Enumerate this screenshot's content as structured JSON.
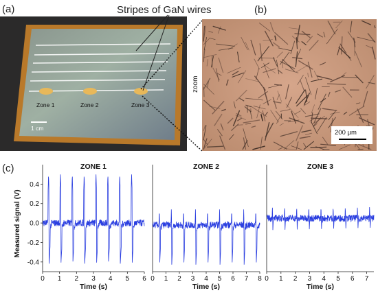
{
  "panels": {
    "a": {
      "label": "(a)",
      "annotation": "Stripes of GaN wires",
      "zones": [
        "Zone 1",
        "Zone 2",
        "Zone 3"
      ],
      "scalebar": "1 cm"
    },
    "b": {
      "label": "(b)",
      "zoom_label": "zoom",
      "scalebar": "200 µm"
    },
    "c": {
      "label": "(c)"
    }
  },
  "colors": {
    "trace": "#2b3fe0",
    "marker": "#e8b85a",
    "frame": "#b9792a",
    "micrograph": "#c28f76"
  },
  "chart_data": [
    {
      "type": "line",
      "title": "ZONE 1",
      "xlabel": "Time (s)",
      "ylabel": "Measured signal (V)",
      "xlim": [
        0,
        6
      ],
      "ylim": [
        -0.5,
        0.6
      ],
      "xticks": [
        0,
        1,
        2,
        3,
        4,
        5,
        6
      ],
      "yticks": [
        -0.4,
        -0.2,
        0.0,
        0.2,
        0.4
      ],
      "series": [
        {
          "baseline": 0.0,
          "peak_times": [
            0.35,
            1.05,
            1.75,
            2.45,
            3.15,
            3.85,
            4.55,
            5.25
          ],
          "peak_max": 0.5,
          "peak_min": -0.42
        }
      ]
    },
    {
      "type": "line",
      "title": "ZONE 2",
      "xlabel": "Time (s)",
      "xlim": [
        0,
        8
      ],
      "ylim": [
        -0.5,
        0.6
      ],
      "xticks": [
        0,
        1,
        2,
        3,
        4,
        5,
        6,
        7,
        8
      ],
      "series": [
        {
          "baseline": -0.02,
          "peak_times": [
            0.5,
            1.4,
            2.3,
            3.2,
            4.1,
            5.0,
            5.9,
            6.8,
            7.7
          ],
          "peak_max": 0.14,
          "peak_min": -0.43
        }
      ]
    },
    {
      "type": "line",
      "title": "ZONE 3",
      "xlabel": "Time (s)",
      "xlim": [
        0,
        7.5
      ],
      "ylim": [
        -0.5,
        0.6
      ],
      "xticks": [
        0,
        1,
        2,
        3,
        4,
        5,
        6,
        7
      ],
      "series": [
        {
          "baseline": 0.05,
          "peak_times": [
            0.4,
            1.25,
            2.1,
            2.95,
            3.8,
            4.65,
            5.5,
            6.35,
            7.2
          ],
          "peak_max": 0.18,
          "peak_min": -0.08
        }
      ]
    }
  ]
}
